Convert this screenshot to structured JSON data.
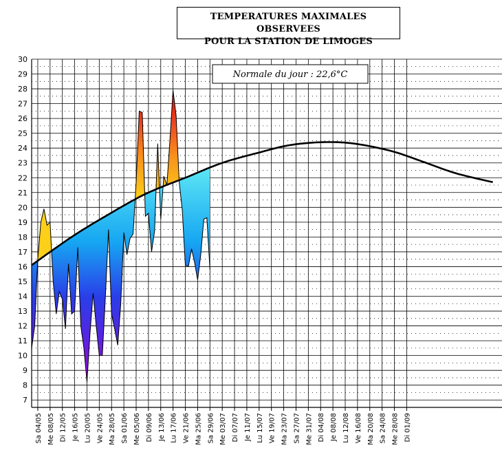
{
  "title_line1": "TEMPERATURES MAXIMALES OBSERVEES",
  "title_line2": "POUR LA STATION DE LIMOGES",
  "chart_data": {
    "type": "area",
    "title": "TEMPERATURES MAXIMALES OBSERVEES POUR LA STATION DE LIMOGES",
    "annotation": "Normale du jour : 22,6°C",
    "ylim": [
      6.5,
      30
    ],
    "yticks": [
      7,
      8,
      9,
      10,
      11,
      12,
      13,
      14,
      15,
      16,
      17,
      18,
      19,
      20,
      21,
      22,
      23,
      24,
      25,
      26,
      27,
      28,
      29,
      30
    ],
    "x_range": [
      "2006-04-03",
      "2006-09-03"
    ],
    "xtick_labels": [
      "Sa 04/05",
      "Me 08/05",
      "Di 12/05",
      "Je 16/05",
      "Lu 20/05",
      "Ve 24/05",
      "Ma 28/05",
      "Sa 01/06",
      "Me 05/06",
      "Di 09/06",
      "Je 13/06",
      "Lu 17/06",
      "Ve 21/06",
      "Ma 25/06",
      "Sa 29/06",
      "Me 03/07",
      "Di 07/07",
      "Je 11/07",
      "Lu 15/07",
      "Ve 19/07",
      "Ma 23/07",
      "Sa 27/07",
      "Me 31/07",
      "Di 04/08",
      "Je 08/08",
      "Lu 12/08",
      "Ve 16/08",
      "Ma 20/08",
      "Sa 24/08",
      "Me 28/08",
      "Di 01/09"
    ],
    "grid": true,
    "normal_series": {
      "points": [
        [
          "2006-04-03",
          16.1
        ],
        [
          "2006-04-16",
          18.0
        ],
        [
          "2006-04-27",
          19.4
        ],
        [
          "2006-05-10",
          20.9
        ],
        [
          "2006-05-23",
          22.0
        ],
        [
          "2006-06-04",
          23.0
        ],
        [
          "2006-06-16",
          23.7
        ],
        [
          "2006-06-26",
          24.2
        ],
        [
          "2006-07-07",
          24.4
        ],
        [
          "2006-07-17",
          24.3
        ],
        [
          "2006-07-29",
          23.8
        ],
        [
          "2006-08-08",
          23.1
        ],
        [
          "2006-08-19",
          22.3
        ],
        [
          "2006-08-31",
          21.7
        ]
      ]
    },
    "observed_series": {
      "points": [
        [
          "2006-04-03",
          16.0
        ],
        [
          "2006-04-03",
          10.5
        ],
        [
          "2006-04-04",
          12.0
        ],
        [
          "2006-04-05",
          16.5
        ],
        [
          "2006-04-06",
          19.0
        ],
        [
          "2006-04-07",
          19.9
        ],
        [
          "2006-04-08",
          18.8
        ],
        [
          "2006-04-09",
          19.0
        ],
        [
          "2006-04-10",
          15.0
        ],
        [
          "2006-04-11",
          12.8
        ],
        [
          "2006-04-12",
          14.3
        ],
        [
          "2006-04-13",
          13.8
        ],
        [
          "2006-04-14",
          11.8
        ],
        [
          "2006-04-15",
          16.2
        ],
        [
          "2006-04-16",
          12.8
        ],
        [
          "2006-04-17",
          13.0
        ],
        [
          "2006-04-18",
          17.3
        ],
        [
          "2006-04-19",
          12.0
        ],
        [
          "2006-04-20",
          10.5
        ],
        [
          "2006-04-21",
          8.2
        ],
        [
          "2006-04-22",
          11.5
        ],
        [
          "2006-04-23",
          14.2
        ],
        [
          "2006-04-24",
          12.0
        ],
        [
          "2006-04-25",
          10.0
        ],
        [
          "2006-04-26",
          10.0
        ],
        [
          "2006-04-27",
          14.0
        ],
        [
          "2006-04-28",
          18.5
        ],
        [
          "2006-04-29",
          12.8
        ],
        [
          "2006-04-30",
          11.8
        ],
        [
          "2006-05-01",
          10.7
        ],
        [
          "2006-05-02",
          13.5
        ],
        [
          "2006-05-03",
          18.3
        ],
        [
          "2006-05-04",
          16.8
        ],
        [
          "2006-05-05",
          17.9
        ],
        [
          "2006-05-06",
          18.2
        ],
        [
          "2006-05-07",
          21.7
        ],
        [
          "2006-05-08",
          26.5
        ],
        [
          "2006-05-09",
          26.4
        ],
        [
          "2006-05-10",
          19.4
        ],
        [
          "2006-05-11",
          19.6
        ],
        [
          "2006-05-12",
          17.0
        ],
        [
          "2006-05-13",
          18.4
        ],
        [
          "2006-05-14",
          24.3
        ],
        [
          "2006-05-15",
          19.2
        ],
        [
          "2006-05-16",
          22.1
        ],
        [
          "2006-05-17",
          21.5
        ],
        [
          "2006-05-18",
          24.6
        ],
        [
          "2006-05-19",
          27.9
        ],
        [
          "2006-05-20",
          26.2
        ],
        [
          "2006-05-21",
          21.7
        ],
        [
          "2006-05-22",
          19.8
        ],
        [
          "2006-05-23",
          16.1
        ],
        [
          "2006-05-24",
          16.0
        ],
        [
          "2006-05-25",
          17.2
        ],
        [
          "2006-05-26",
          16.3
        ],
        [
          "2006-05-27",
          15.1
        ],
        [
          "2006-05-28",
          16.8
        ],
        [
          "2006-05-29",
          19.2
        ],
        [
          "2006-05-30",
          19.3
        ],
        [
          "2006-05-31",
          15.8
        ]
      ]
    }
  }
}
